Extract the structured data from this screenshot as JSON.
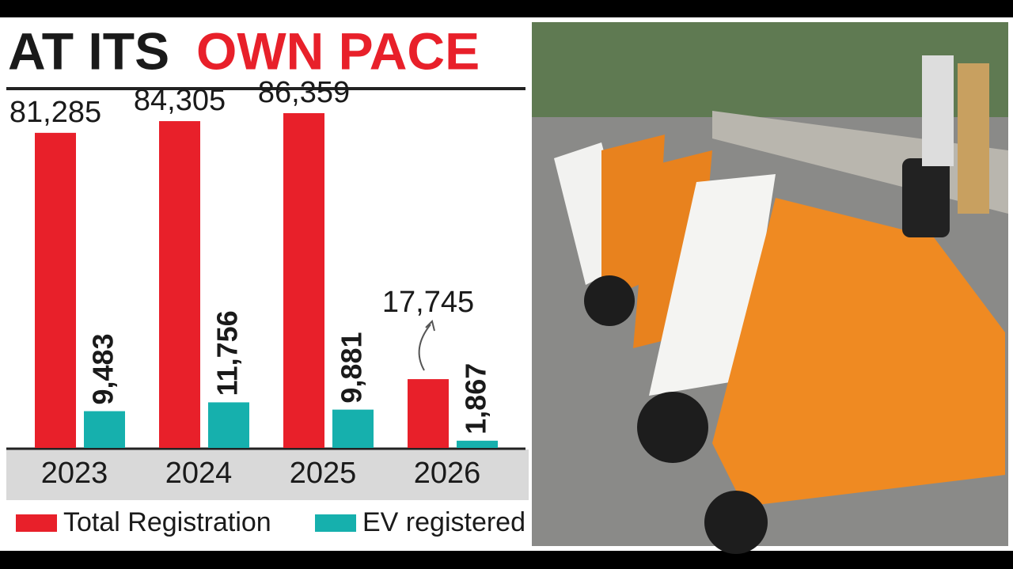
{
  "chart_data": {
    "type": "bar",
    "title": "AT ITS",
    "title_emphasis": "OWN PACE",
    "categories": [
      "2023",
      "2024",
      "2025",
      "2026"
    ],
    "series": [
      {
        "name": "Total Registration",
        "color": "#e8202a",
        "values": [
          81285,
          84305,
          86359,
          17745
        ],
        "value_labels": [
          "81,285",
          "84,305",
          "86,359",
          "17,745"
        ]
      },
      {
        "name": "EV registered",
        "color": "#16b0ad",
        "values": [
          9483,
          11756,
          9881,
          1867
        ],
        "value_labels": [
          "9,483",
          "11,756",
          "9,881",
          "1,867"
        ]
      }
    ]
  }
}
